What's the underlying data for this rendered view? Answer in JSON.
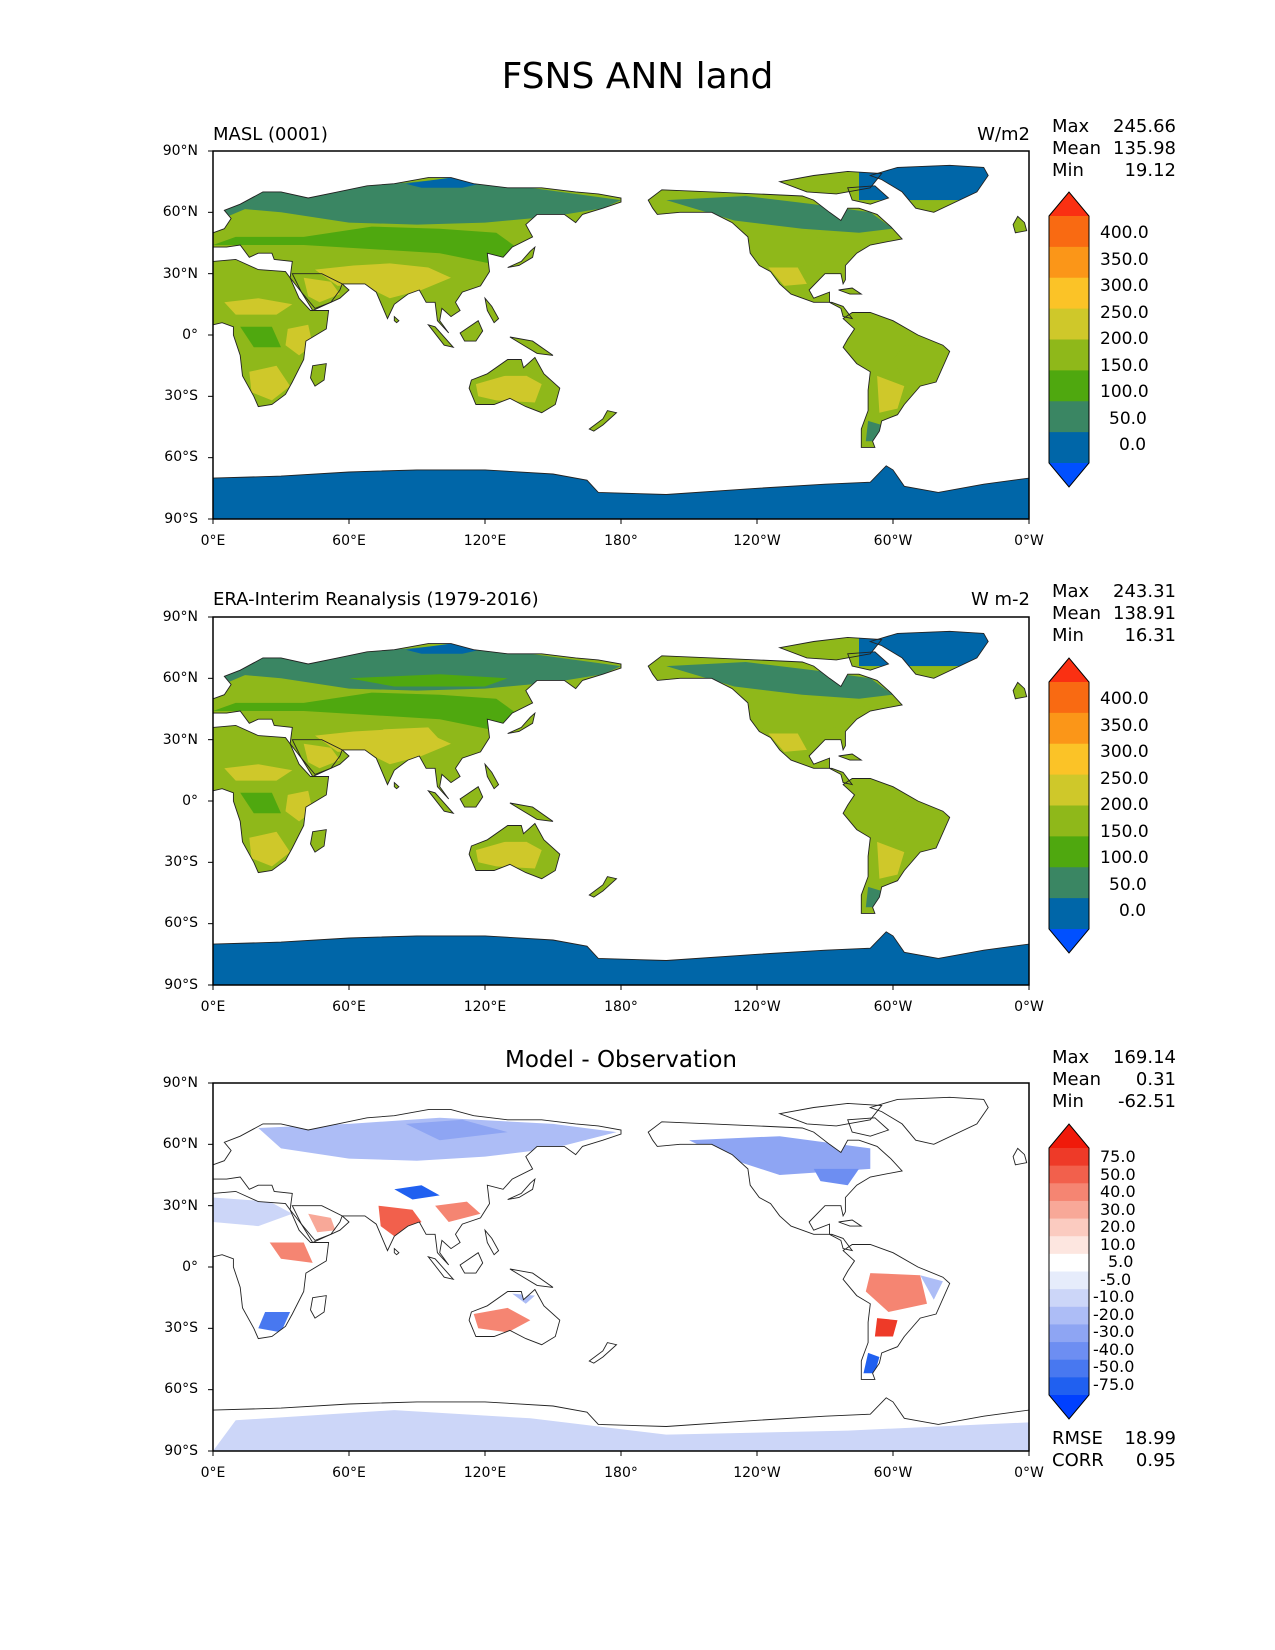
{
  "title": "FSNS ANN land",
  "lat_ticks": [
    "90°N",
    "60°N",
    "30°N",
    "0°",
    "30°S",
    "60°S",
    "90°S"
  ],
  "lon_ticks": [
    "0°E",
    "60°E",
    "120°E",
    "180°",
    "120°W",
    "60°W",
    "0°W"
  ],
  "colors": {
    "ocean": "#ffffff",
    "coast": "#222222",
    "seq": [
      "#0050ff",
      "#0066a8",
      "#3a8663",
      "#4fa80f",
      "#8fb81a",
      "#cfc82a",
      "#fbc327",
      "#fb9618",
      "#f96a12",
      "#fa3012"
    ],
    "diff": [
      "#0040ff",
      "#2060f0",
      "#4878f0",
      "#6d8ef2",
      "#8ea5f3",
      "#adbdf6",
      "#ccd6f8",
      "#e6ecfb",
      "#ffffff",
      "#fde6e0",
      "#fbcbc0",
      "#f8a898",
      "#f58572",
      "#f2604c",
      "#ee3a28",
      "#f01a0a"
    ]
  },
  "panels": [
    {
      "label": "MASL (0001)",
      "units": "W/m2",
      "stats": {
        "max_label": "Max",
        "max": "245.66",
        "mean_label": "Mean",
        "mean": "135.98",
        "min_label": "Min",
        "min": "19.12"
      },
      "colorbar": {
        "labels": [
          "400.0",
          "350.0",
          "300.0",
          "250.0",
          "200.0",
          "150.0",
          "100.0",
          "50.0",
          "0.0"
        ]
      }
    },
    {
      "label": "ERA-Interim Reanalysis (1979-2016)",
      "units": "W m-2",
      "stats": {
        "max_label": "Max",
        "max": "243.31",
        "mean_label": "Mean",
        "mean": "138.91",
        "min_label": "Min",
        "min": "16.31"
      },
      "colorbar": {
        "labels": [
          "400.0",
          "350.0",
          "300.0",
          "250.0",
          "200.0",
          "150.0",
          "100.0",
          "50.0",
          "0.0"
        ]
      }
    },
    {
      "title": "Model - Observation",
      "stats": {
        "max_label": "Max",
        "max": "169.14",
        "mean_label": "Mean",
        "mean": "0.31",
        "min_label": "Min",
        "min": "-62.51"
      },
      "colorbar": {
        "labels": [
          "75.0",
          "50.0",
          "40.0",
          "30.0",
          "20.0",
          "10.0",
          "5.0",
          "-5.0",
          "-10.0",
          "-20.0",
          "-30.0",
          "-40.0",
          "-50.0",
          "-75.0"
        ]
      },
      "metrics": {
        "rmse_label": "RMSE",
        "rmse": "18.99",
        "corr_label": "CORR",
        "corr": "0.95"
      }
    }
  ]
}
